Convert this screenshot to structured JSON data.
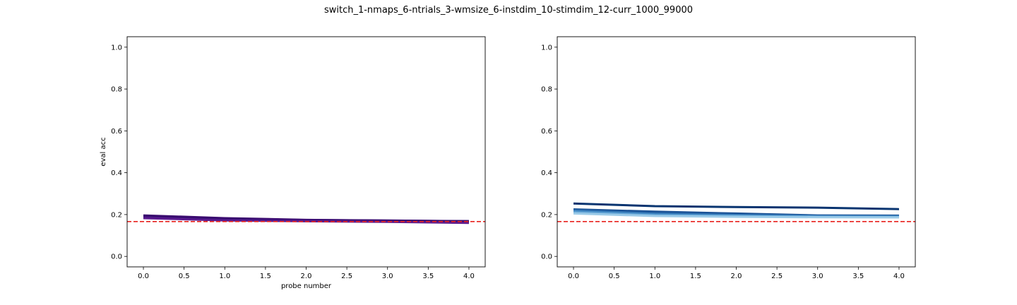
{
  "title": "switch_1-nmaps_6-ntrials_3-wmsize_6-instdim_10-stimdim_12-curr_1000_99000",
  "colors": {
    "chance_line": "#e8231f",
    "left_series": [
      "#3a0a6e",
      "#3f0c73",
      "#2d0f66",
      "#4b0f80",
      "#36107a",
      "#5a1a8e"
    ],
    "right_series": [
      "#083470",
      "#1a5296",
      "#2c6fb0",
      "#4a90c8",
      "#6aa9d8",
      "#9ccbe8"
    ]
  },
  "chart_data": [
    {
      "type": "line",
      "title": "",
      "xlabel": "probe number",
      "ylabel": "eval acc",
      "xlim": [
        -0.2,
        4.2
      ],
      "ylim": [
        -0.05,
        1.05
      ],
      "xticks": [
        "0.0",
        "0.5",
        "1.0",
        "1.5",
        "2.0",
        "2.5",
        "3.0",
        "3.5",
        "4.0"
      ],
      "yticks": [
        "0.0",
        "0.2",
        "0.4",
        "0.6",
        "0.8",
        "1.0"
      ],
      "x": [
        0,
        1,
        2,
        3,
        4
      ],
      "reference_line": {
        "y": 0.1667,
        "style": "dashed"
      },
      "series": [
        {
          "values": [
            0.196,
            0.183,
            0.175,
            0.171,
            0.169
          ]
        },
        {
          "values": [
            0.193,
            0.18,
            0.174,
            0.172,
            0.168
          ]
        },
        {
          "values": [
            0.19,
            0.177,
            0.171,
            0.168,
            0.166
          ]
        },
        {
          "values": [
            0.187,
            0.175,
            0.17,
            0.166,
            0.163
          ]
        },
        {
          "values": [
            0.185,
            0.174,
            0.169,
            0.167,
            0.161
          ]
        },
        {
          "values": [
            0.183,
            0.172,
            0.168,
            0.165,
            0.16
          ]
        }
      ]
    },
    {
      "type": "line",
      "title": "",
      "xlabel": "",
      "ylabel": "",
      "xlim": [
        -0.2,
        4.2
      ],
      "ylim": [
        -0.05,
        1.05
      ],
      "xticks": [
        "0.0",
        "0.5",
        "1.0",
        "1.5",
        "2.0",
        "2.5",
        "3.0",
        "3.5",
        "4.0"
      ],
      "yticks": [
        "0.0",
        "0.2",
        "0.4",
        "0.6",
        "0.8",
        "1.0"
      ],
      "x": [
        0,
        1,
        2,
        3,
        4
      ],
      "reference_line": {
        "y": 0.1667,
        "style": "dashed"
      },
      "series": [
        {
          "values": [
            0.253,
            0.24,
            0.236,
            0.233,
            0.226
          ]
        },
        {
          "values": [
            0.225,
            0.214,
            0.205,
            0.196,
            0.195
          ]
        },
        {
          "values": [
            0.22,
            0.205,
            0.198,
            0.193,
            0.192
          ]
        },
        {
          "values": [
            0.215,
            0.2,
            0.195,
            0.191,
            0.19
          ]
        },
        {
          "values": [
            0.21,
            0.196,
            0.192,
            0.189,
            0.188
          ]
        },
        {
          "values": [
            0.205,
            0.193,
            0.189,
            0.187,
            0.186
          ]
        }
      ]
    }
  ]
}
